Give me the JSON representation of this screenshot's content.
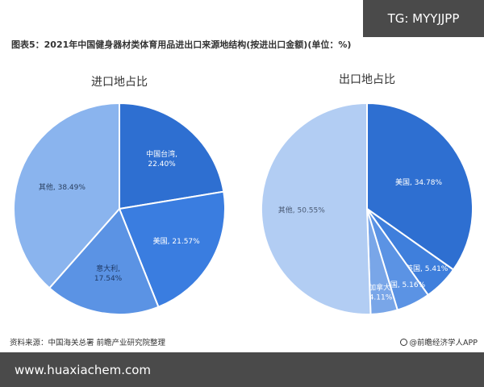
{
  "badge": "TG: MYYJJPP",
  "figure_title": "图表5：2021年中国健身器材类体育用品进出口来源地结构(按进出口金额)(单位：%)",
  "chart_data": [
    {
      "type": "pie",
      "title": "进口地占比",
      "start_angle_deg": 0,
      "slices": [
        {
          "name": "中国台湾",
          "value": 22.4,
          "color": "#2e6fd1",
          "label": "中国台湾,\n22.40%",
          "text_color": "#ffffff"
        },
        {
          "name": "美国",
          "value": 21.57,
          "color": "#3a7de0",
          "label": "美国, 21.57%",
          "text_color": "#ffffff"
        },
        {
          "name": "意大利",
          "value": 17.54,
          "color": "#5b93e4",
          "label": "意大利,\n17.54%",
          "text_color": "#1f3a66"
        },
        {
          "name": "其他",
          "value": 38.49,
          "color": "#8ab4ee",
          "label": "其他, 38.49%",
          "text_color": "#2a3f5f"
        }
      ]
    },
    {
      "type": "pie",
      "title": "出口地占比",
      "start_angle_deg": 0,
      "slices": [
        {
          "name": "美国",
          "value": 34.78,
          "color": "#2e6fd1",
          "label": "美国, 34.78%",
          "text_color": "#ffffff"
        },
        {
          "name": "英国",
          "value": 5.41,
          "color": "#3f7fdc",
          "label": "英国, 5.41%",
          "text_color": "#ffffff"
        },
        {
          "name": "德国",
          "value": 5.16,
          "color": "#5b93e4",
          "label": "德国, 5.16%",
          "text_color": "#ffffff"
        },
        {
          "name": "加拿大",
          "value": 4.11,
          "color": "#79a6e8",
          "label": "加拿大,\n4.11%",
          "text_color": "#ffffff"
        },
        {
          "name": "其他",
          "value": 50.55,
          "color": "#b2cdf3",
          "label": "其他, 50.55%",
          "text_color": "#4a5a74"
        }
      ]
    }
  ],
  "footer": {
    "source": "资料来源：中国海关总署 前瞻产业研究院整理",
    "app": "@前瞻经济学人APP"
  },
  "watermark_url": "www.huaxiachem.com"
}
